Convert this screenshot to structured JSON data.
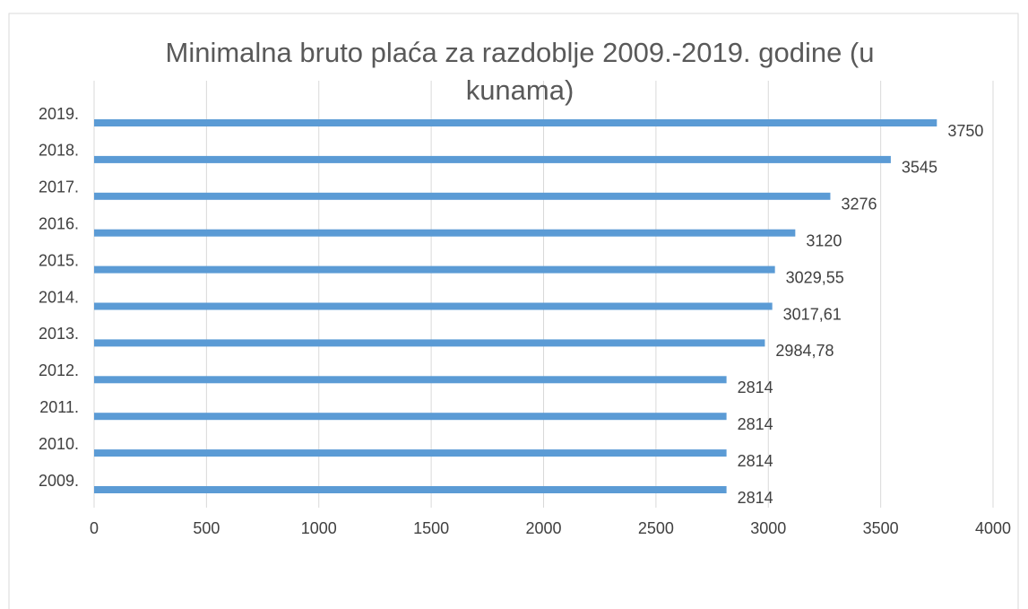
{
  "chart_data": {
    "type": "bar",
    "orientation": "horizontal",
    "title": "Minimalna bruto plaća za razdoblje 2009.-2019. godine (u kunama)",
    "categories": [
      "2009.",
      "2010.",
      "2011.",
      "2012.",
      "2013.",
      "2014.",
      "2015.",
      "2016.",
      "2017.",
      "2018.",
      "2019."
    ],
    "values": [
      2814,
      2814,
      2814,
      2814,
      2984.78,
      3017.61,
      3029.55,
      3120,
      3276,
      3545,
      3750
    ],
    "value_labels": [
      "2814",
      "2814",
      "2814",
      "2814",
      "2984,78",
      "3017,61",
      "3029,55",
      "3120",
      "3276",
      "3545",
      "3750"
    ],
    "color": "#5b9bd5",
    "xlim": [
      0,
      4000
    ],
    "xticks": [
      0,
      500,
      1000,
      1500,
      2000,
      2500,
      3000,
      3500,
      4000
    ],
    "grid": true
  }
}
